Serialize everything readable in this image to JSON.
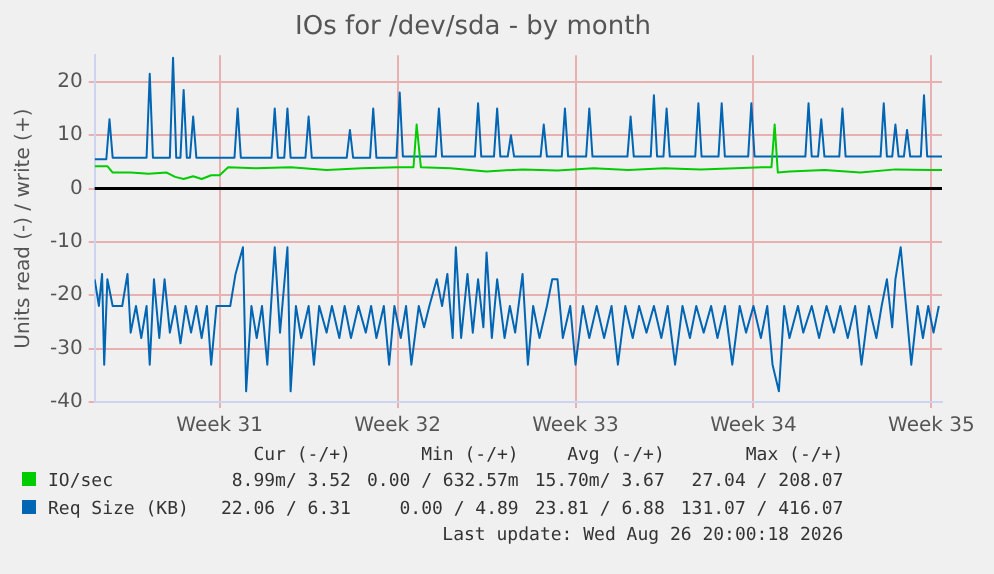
{
  "chart_data": {
    "type": "line",
    "title": "IOs for /dev/sda - by month",
    "ylabel": "Units read (-) / write (+)",
    "xlim": [
      "2026-07-22T02:00",
      "2026-08-24T10:00"
    ],
    "xticks": [
      {
        "value": "2026-07-27T00:00",
        "label": "Week 31"
      },
      {
        "value": "2026-08-03T00:00",
        "label": "Week 32"
      },
      {
        "value": "2026-08-10T00:00",
        "label": "Week 33"
      },
      {
        "value": "2026-08-17T00:00",
        "label": "Week 34"
      },
      {
        "value": "2026-08-24T00:00",
        "label": "Week 35"
      }
    ],
    "ylim": [
      -40,
      25
    ],
    "yticks": [
      -40,
      -30,
      -20,
      -10,
      0,
      10,
      20
    ],
    "grid": true,
    "legend": "bottom",
    "marker": "none",
    "line_style": "solid",
    "ref_lines": [
      {
        "axis": "y",
        "value": 0,
        "color": "#000000"
      }
    ],
    "series": [
      {
        "name": "IO/sec",
        "color": "#00cc00",
        "x": [
          "2026-07-22T02:00",
          "2026-07-22T14:00",
          "2026-07-22T19:00",
          "2026-07-23T12:00",
          "2026-07-24T05:00",
          "2026-07-24T22:00",
          "2026-07-25T06:00",
          "2026-07-25T14:00",
          "2026-07-25T23:00",
          "2026-07-26T07:00",
          "2026-07-26T16:00",
          "2026-07-27T00:00",
          "2026-07-27T08:00",
          "2026-07-28T10:00",
          "2026-07-29T19:00",
          "2026-07-31T05:00",
          "2026-08-01T14:00",
          "2026-08-03T00:00",
          "2026-08-03T15:00",
          "2026-08-03T18:00",
          "2026-08-03T22:00",
          "2026-08-05T02:00",
          "2026-08-06T12:00",
          "2026-08-07T22:00",
          "2026-08-09T07:00",
          "2026-08-10T17:00",
          "2026-08-12T02:00",
          "2026-08-13T12:00",
          "2026-08-14T22:00",
          "2026-08-16T07:00",
          "2026-08-17T08:00",
          "2026-08-17T17:00",
          "2026-08-17T20:00",
          "2026-08-17T23:00",
          "2026-08-18T10:00",
          "2026-08-19T19:00",
          "2026-08-21T05:00",
          "2026-08-22T14:00",
          "2026-08-24T00:00",
          "2026-08-24T10:00"
        ],
        "values": [
          4.2,
          4.2,
          3,
          3,
          2.8,
          3,
          2.2,
          1.8,
          2.3,
          1.8,
          2.5,
          2.5,
          4,
          3.8,
          4,
          3.5,
          3.8,
          4,
          4,
          12,
          4,
          3.8,
          3.2,
          3.6,
          3.4,
          3.8,
          3.5,
          3.8,
          3.6,
          3.8,
          4,
          4,
          12,
          3,
          3.2,
          3.5,
          3,
          3.6,
          3.5,
          3.5
        ]
      },
      {
        "name": "Req Size (KB)",
        "color": "#0066b3",
        "x": [
          "2026-07-22T02:00",
          "2026-07-22T13:00",
          "2026-07-22T16:00",
          "2026-07-22T19:00",
          "2026-07-24T03:00",
          "2026-07-24T06:00",
          "2026-07-24T09:00",
          "2026-07-25T01:00",
          "2026-07-25T04:00",
          "2026-07-25T07:00",
          "2026-07-25T11:00",
          "2026-07-25T14:00",
          "2026-07-25T17:00",
          "2026-07-25T20:00",
          "2026-07-25T23:00",
          "2026-07-26T02:00",
          "2026-07-27T14:00",
          "2026-07-27T17:00",
          "2026-07-27T20:00",
          "2026-07-29T01:00",
          "2026-07-29T04:00",
          "2026-07-29T07:00",
          "2026-07-29T13:00",
          "2026-07-29T16:00",
          "2026-07-29T19:00",
          "2026-07-30T09:00",
          "2026-07-30T12:00",
          "2026-07-30T15:00",
          "2026-08-01T00:00",
          "2026-08-01T03:00",
          "2026-08-01T06:00",
          "2026-08-01T22:00",
          "2026-08-02T01:00",
          "2026-08-02T04:00",
          "2026-08-02T23:00",
          "2026-08-03T02:00",
          "2026-08-03T05:00",
          "2026-08-04T12:00",
          "2026-08-04T15:00",
          "2026-08-04T18:00",
          "2026-08-06T01:00",
          "2026-08-06T04:00",
          "2026-08-06T07:00",
          "2026-08-06T19:00",
          "2026-08-06T22:00",
          "2026-08-07T01:00",
          "2026-08-07T08:00",
          "2026-08-07T11:00",
          "2026-08-07T14:00",
          "2026-08-08T15:00",
          "2026-08-08T18:00",
          "2026-08-08T21:00",
          "2026-08-09T11:00",
          "2026-08-09T14:00",
          "2026-08-09T17:00",
          "2026-08-10T10:00",
          "2026-08-10T13:00",
          "2026-08-10T16:00",
          "2026-08-12T01:00",
          "2026-08-12T04:00",
          "2026-08-12T07:00",
          "2026-08-12T23:00",
          "2026-08-13T02:00",
          "2026-08-13T05:00",
          "2026-08-13T11:00",
          "2026-08-13T14:00",
          "2026-08-13T17:00",
          "2026-08-14T17:00",
          "2026-08-14T20:00",
          "2026-08-14T23:00",
          "2026-08-15T15:00",
          "2026-08-15T18:00",
          "2026-08-15T21:00",
          "2026-08-16T19:00",
          "2026-08-16T22:00",
          "2026-08-17T01:00",
          "2026-08-19T01:00",
          "2026-08-19T04:00",
          "2026-08-19T07:00",
          "2026-08-19T13:00",
          "2026-08-19T16:00",
          "2026-08-19T19:00",
          "2026-08-20T09:00",
          "2026-08-20T12:00",
          "2026-08-20T15:00",
          "2026-08-22T00:00",
          "2026-08-22T03:00",
          "2026-08-22T06:00",
          "2026-08-22T11:00",
          "2026-08-22T14:00",
          "2026-08-22T17:00",
          "2026-08-22T22:00",
          "2026-08-23T01:00",
          "2026-08-23T04:00",
          "2026-08-23T14:00",
          "2026-08-23T17:00",
          "2026-08-23T20:00",
          "2026-08-24T10:00"
        ],
        "values": [
          5.5,
          5.5,
          13,
          5.8,
          5.8,
          21.5,
          5.8,
          5.8,
          24.5,
          5.8,
          5.8,
          18.5,
          5.8,
          5.8,
          13.5,
          5.8,
          5.8,
          15,
          5.8,
          5.8,
          15,
          5.8,
          5.8,
          15,
          5.8,
          5.8,
          13.5,
          5.8,
          5.8,
          11,
          5.8,
          5.8,
          15,
          5.8,
          5.8,
          18,
          6,
          6,
          15,
          6,
          6,
          16,
          6,
          6,
          15,
          6,
          6,
          10,
          6,
          6,
          12,
          6,
          6,
          15,
          6,
          6,
          15,
          6,
          6,
          13.5,
          6,
          6,
          17.5,
          6,
          6,
          15,
          6,
          6,
          16,
          6,
          6,
          16,
          6,
          6,
          16,
          6,
          6,
          16,
          6,
          6,
          13,
          6,
          6,
          15,
          6,
          6,
          16,
          6,
          6,
          12,
          6,
          6,
          11,
          6,
          6,
          17.5,
          6,
          6
        ]
      },
      {
        "color": "#0066b3",
        "x": [
          "2026-07-22T02:00",
          "2026-07-22T06:00",
          "2026-07-22T09:00",
          "2026-07-22T11:00",
          "2026-07-22T14:00",
          "2026-07-22T19:00",
          "2026-07-23T04:00",
          "2026-07-23T09:00",
          "2026-07-23T12:00",
          "2026-07-23T17:00",
          "2026-07-23T22:00",
          "2026-07-24T03:00",
          "2026-07-24T06:00",
          "2026-07-24T10:00",
          "2026-07-24T15:00",
          "2026-07-24T20:00",
          "2026-07-25T01:00",
          "2026-07-25T06:00",
          "2026-07-25T11:00",
          "2026-07-25T16:00",
          "2026-07-25T21:00",
          "2026-07-26T02:00",
          "2026-07-26T07:00",
          "2026-07-26T12:00",
          "2026-07-26T16:00",
          "2026-07-26T21:00",
          "2026-07-27T03:00",
          "2026-07-27T10:00",
          "2026-07-27T15:00",
          "2026-07-27T22:00",
          "2026-07-28T01:00",
          "2026-07-28T06:00",
          "2026-07-28T11:00",
          "2026-07-28T16:00",
          "2026-07-28T21:00",
          "2026-07-29T04:00",
          "2026-07-29T09:00",
          "2026-07-29T16:00",
          "2026-07-29T19:00",
          "2026-07-30T00:00",
          "2026-07-30T05:00",
          "2026-07-30T12:00",
          "2026-07-30T17:00",
          "2026-07-30T22:00",
          "2026-07-31T05:00",
          "2026-07-31T10:00",
          "2026-07-31T17:00",
          "2026-07-31T22:00",
          "2026-08-01T04:00",
          "2026-08-01T11:00",
          "2026-08-01T18:00",
          "2026-08-01T23:00",
          "2026-08-02T04:00",
          "2026-08-02T11:00",
          "2026-08-02T16:00",
          "2026-08-02T21:00",
          "2026-08-03T03:00",
          "2026-08-03T08:00",
          "2026-08-03T13:00",
          "2026-08-03T20:00",
          "2026-08-04T01:00",
          "2026-08-04T06:00",
          "2026-08-04T13:00",
          "2026-08-04T18:00",
          "2026-08-04T23:00",
          "2026-08-05T04:00",
          "2026-08-05T07:00",
          "2026-08-05T12:00",
          "2026-08-05T18:00",
          "2026-08-05T23:00",
          "2026-08-06T04:00",
          "2026-08-06T09:00",
          "2026-08-06T12:00",
          "2026-08-06T17:00",
          "2026-08-06T22:00",
          "2026-08-07T05:00",
          "2026-08-07T10:00",
          "2026-08-07T15:00",
          "2026-08-07T22:00",
          "2026-08-08T03:00",
          "2026-08-08T08:00",
          "2026-08-08T14:00",
          "2026-08-08T21:00",
          "2026-08-09T02:00",
          "2026-08-09T07:00",
          "2026-08-09T12:00",
          "2026-08-09T19:00",
          "2026-08-10T00:00",
          "2026-08-10T07:00",
          "2026-08-10T13:00",
          "2026-08-10T20:00",
          "2026-08-11T03:00",
          "2026-08-11T10:00",
          "2026-08-11T16:00",
          "2026-08-11T23:00",
          "2026-08-12T06:00",
          "2026-08-12T12:00",
          "2026-08-12T19:00",
          "2026-08-13T02:00",
          "2026-08-13T09:00",
          "2026-08-13T15:00",
          "2026-08-13T22:00",
          "2026-08-14T05:00",
          "2026-08-14T12:00",
          "2026-08-14T18:00",
          "2026-08-15T01:00",
          "2026-08-15T08:00",
          "2026-08-15T14:00",
          "2026-08-15T21:00",
          "2026-08-16T04:00",
          "2026-08-16T11:00",
          "2026-08-16T17:00",
          "2026-08-17T00:00",
          "2026-08-17T07:00",
          "2026-08-17T13:00",
          "2026-08-17T18:00",
          "2026-08-18T00:00",
          "2026-08-18T05:00",
          "2026-08-18T10:00",
          "2026-08-18T18:00",
          "2026-08-18T23:00",
          "2026-08-19T07:00",
          "2026-08-19T14:00",
          "2026-08-19T21:00",
          "2026-08-20T04:00",
          "2026-08-20T10:00",
          "2026-08-20T17:00",
          "2026-08-21T00:00",
          "2026-08-21T06:00",
          "2026-08-21T13:00",
          "2026-08-21T20:00",
          "2026-08-22T01:00",
          "2026-08-22T06:00",
          "2026-08-22T11:00",
          "2026-08-22T14:00",
          "2026-08-22T19:00",
          "2026-08-23T00:00",
          "2026-08-23T05:00",
          "2026-08-23T11:00",
          "2026-08-23T16:00",
          "2026-08-23T21:00",
          "2026-08-24T02:00",
          "2026-08-24T07:00"
        ],
        "values": [
          -17,
          -22,
          -16,
          -33,
          -17,
          -22,
          -22,
          -16,
          -27,
          -22,
          -28,
          -22,
          -33,
          -17,
          -28,
          -17,
          -27,
          -22,
          -29,
          -22,
          -27,
          -22,
          -28,
          -22,
          -33,
          -22,
          -22,
          -22,
          -16,
          -11,
          -38,
          -22,
          -28,
          -22,
          -33,
          -11,
          -27,
          -11,
          -38,
          -22,
          -28,
          -22,
          -33,
          -22,
          -27,
          -22,
          -28,
          -22,
          -28,
          -22,
          -27,
          -22,
          -28,
          -22,
          -33,
          -22,
          -28,
          -22,
          -33,
          -22,
          -26,
          -22,
          -17,
          -22,
          -16,
          -28,
          -11,
          -28,
          -16,
          -27,
          -17,
          -26,
          -12,
          -28,
          -17,
          -28,
          -22,
          -27,
          -16,
          -33,
          -22,
          -28,
          -22,
          -17,
          -17,
          -28,
          -22,
          -33,
          -22,
          -28,
          -22,
          -28,
          -22,
          -33,
          -22,
          -28,
          -22,
          -27,
          -22,
          -28,
          -22,
          -33,
          -22,
          -28,
          -22,
          -27,
          -22,
          -28,
          -22,
          -33,
          -22,
          -27,
          -22,
          -28,
          -22,
          -33,
          -38,
          -22,
          -28,
          -22,
          -27,
          -22,
          -28,
          -22,
          -27,
          -22,
          -28,
          -22,
          -33,
          -22,
          -28,
          -22,
          -17,
          -26,
          -17,
          -11,
          -22,
          -33,
          -22,
          -28,
          -22,
          -27,
          -22
        ]
      }
    ],
    "annotations": [
      "Cur (-/+)",
      "Min (-/+)",
      "Avg (-/+)",
      "Max (-/+)",
      "8.99m/ 3.52",
      "0.00 / 632.57m",
      "15.70m/ 3.67",
      "27.04 / 208.07",
      "22.06 / 6.31",
      "0.00 / 4.89",
      "23.81 / 6.88",
      "131.07 / 416.07",
      "Last update: Wed Aug 26 20:00:18 2026"
    ]
  }
}
